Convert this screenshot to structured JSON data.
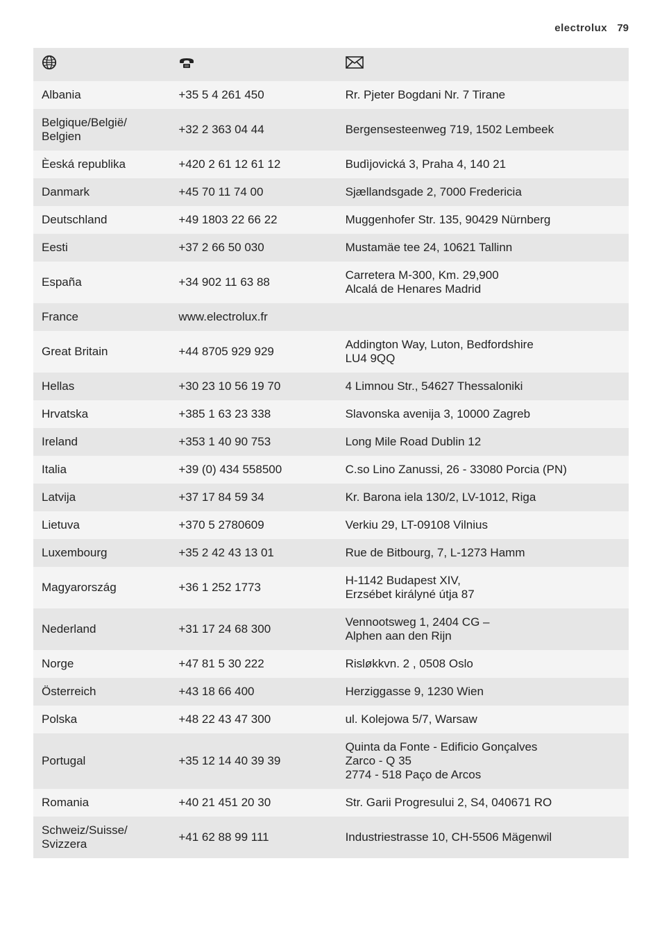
{
  "header": {
    "brand": "electrolux",
    "page_number": "79"
  },
  "table": {
    "header_icons": {
      "country": "🌐",
      "phone": "☎",
      "address": "✉"
    },
    "row_colors": {
      "odd": "#e6e6e6",
      "even": "#f4f4f4"
    },
    "text_color": "#222222",
    "font_size_pt": 13,
    "columns": [
      "country",
      "phone",
      "address"
    ],
    "column_widths_pct": [
      23,
      28,
      49
    ],
    "rows": [
      {
        "country": "Albania",
        "phone": "+35 5 4 261 450",
        "address": "Rr. Pjeter Bogdani Nr. 7 Tirane"
      },
      {
        "country": "Belgique/België/\nBelgien",
        "phone": "+32 2 363 04 44",
        "address": "Bergensesteenweg 719, 1502 Lembeek"
      },
      {
        "country": "Èeská republika",
        "phone": "+420 2 61 12 61 12",
        "address": "Budìjovická 3, Praha 4, 140 21"
      },
      {
        "country": "Danmark",
        "phone": "+45 70 11 74 00",
        "address": "Sjællandsgade 2, 7000 Fredericia"
      },
      {
        "country": "Deutschland",
        "phone": "+49 1803 22 66 22",
        "address": "Muggenhofer Str. 135, 90429 Nürnberg"
      },
      {
        "country": "Eesti",
        "phone": "+37 2 66 50 030",
        "address": "Mustamäe tee 24, 10621 Tallinn"
      },
      {
        "country": "España",
        "phone": "+34 902 11 63 88",
        "address": "Carretera M-300, Km. 29,900\nAlcalá de Henares Madrid"
      },
      {
        "country": "France",
        "phone": "www.electrolux.fr",
        "address": ""
      },
      {
        "country": "Great Britain",
        "phone": "+44 8705 929 929",
        "address": "Addington Way, Luton, Bedfordshire\nLU4 9QQ"
      },
      {
        "country": "Hellas",
        "phone": "+30 23 10 56 19 70",
        "address": "4 Limnou Str., 54627 Thessaloniki"
      },
      {
        "country": "Hrvatska",
        "phone": "+385 1 63 23 338",
        "address": "Slavonska avenija 3, 10000 Zagreb"
      },
      {
        "country": "Ireland",
        "phone": "+353 1 40 90 753",
        "address": "Long Mile Road Dublin 12"
      },
      {
        "country": "Italia",
        "phone": "+39 (0) 434 558500",
        "address": "C.so Lino Zanussi, 26 - 33080 Porcia (PN)"
      },
      {
        "country": "Latvija",
        "phone": "+37 17 84 59 34",
        "address": "Kr. Barona iela 130/2, LV-1012, Riga"
      },
      {
        "country": "Lietuva",
        "phone": "+370 5 2780609",
        "address": "Verkiu 29, LT-09108 Vilnius"
      },
      {
        "country": "Luxembourg",
        "phone": "+35 2 42 43 13 01",
        "address": "Rue de Bitbourg, 7, L-1273 Hamm"
      },
      {
        "country": "Magyarország",
        "phone": "+36 1 252 1773",
        "address": "H-1142 Budapest XIV,\nErzsébet királyné útja 87"
      },
      {
        "country": "Nederland",
        "phone": "+31 17 24 68 300",
        "address": "Vennootsweg 1, 2404 CG –\nAlphen aan den Rijn"
      },
      {
        "country": "Norge",
        "phone": "+47 81 5 30 222",
        "address": "Risløkkvn. 2 , 0508 Oslo"
      },
      {
        "country": "Österreich",
        "phone": "+43 18 66 400",
        "address": "Herziggasse 9, 1230 Wien"
      },
      {
        "country": "Polska",
        "phone": "+48 22 43 47 300",
        "address": "ul. Kolejowa 5/7, Warsaw"
      },
      {
        "country": "Portugal",
        "phone": "+35 12 14 40 39 39",
        "address": "Quinta da Fonte - Edificio Gonçalves\nZarco - Q 35\n2774 - 518 Paço de Arcos"
      },
      {
        "country": "Romania",
        "phone": "+40 21 451 20 30",
        "address": "Str. Garii Progresului 2, S4, 040671 RO"
      },
      {
        "country": "Schweiz/Suisse/\nSvizzera",
        "phone": "+41 62 88 99 111",
        "address": "Industriestrasse 10, CH-5506 Mägenwil"
      }
    ]
  }
}
